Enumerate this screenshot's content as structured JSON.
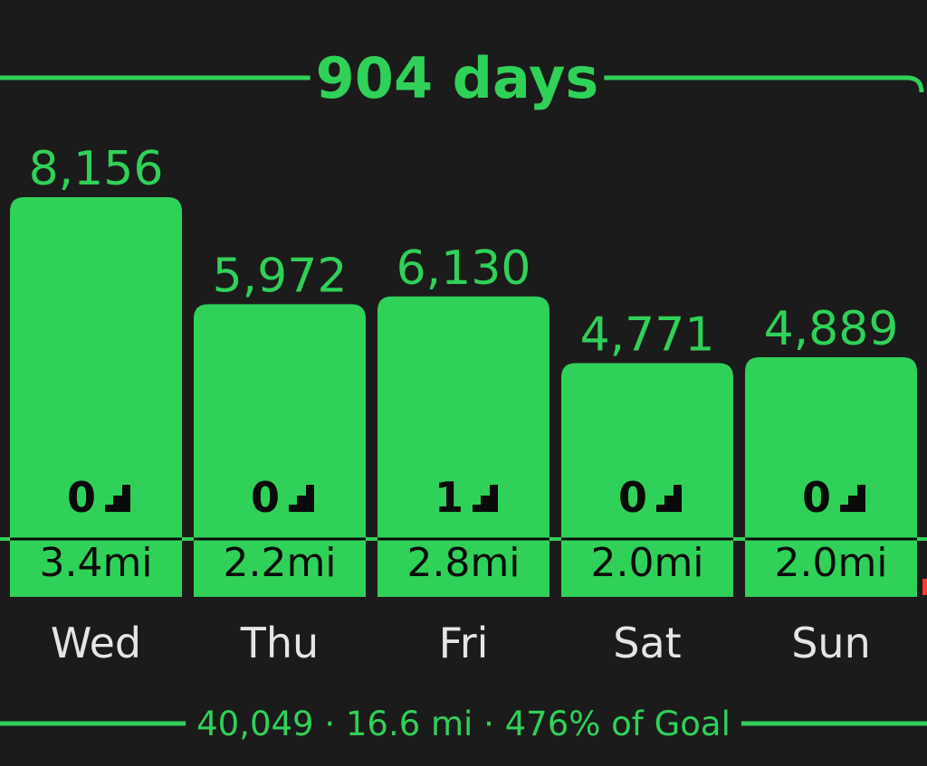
{
  "colors": {
    "background": "#1b1b1b",
    "accent": "#30d158",
    "bar_text": "#0a0a0a",
    "day_label": "#e5e5e5"
  },
  "header": {
    "streak_label": "904 days"
  },
  "summary": {
    "text": "40,049 · 16.6 mi · 476% of Goal"
  },
  "chart_data": {
    "type": "bar",
    "categories": [
      "Wed",
      "Thu",
      "Fri",
      "Sat",
      "Sun"
    ],
    "values": [
      8156,
      5972,
      6130,
      4771,
      4889
    ],
    "value_labels": [
      "8,156",
      "5,972",
      "6,130",
      "4,771",
      "4,889"
    ],
    "flights": [
      "0",
      "0",
      "1",
      "0",
      "0"
    ],
    "distances": [
      "3.4mi",
      "2.2mi",
      "2.8mi",
      "2.0mi",
      "2.0mi"
    ],
    "icon": "stairs-icon",
    "legend": "none",
    "grid": false
  }
}
